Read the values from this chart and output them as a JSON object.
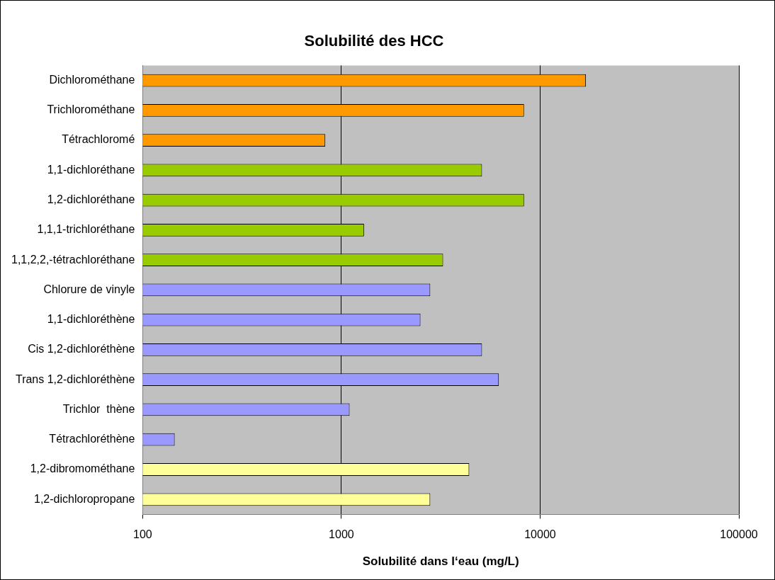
{
  "chart_data": {
    "type": "bar",
    "orientation": "horizontal",
    "title": "Solubilité des HCC",
    "xlabel": "Solubilité dans l‘eau (mg/L)",
    "categories": [
      "Dichlorométhane",
      "Trichlorométhane",
      "Tétrachloromé",
      "1,1-dichloréthane",
      "1,2-dichloréthane",
      "1,1,1-trichloréthane",
      "1,1,2,2,-tétrachloréthane",
      "Chlorure de vinyle",
      "1,1-dichloréthène",
      "Cis 1,2-dichloréthène",
      "Trans 1,2-dichloréthène",
      "Trichlor  thène",
      "Tétrachloréthène",
      "1,2-dibromométhane",
      "1,2-dichloropropane"
    ],
    "values": [
      17000,
      8300,
      830,
      5100,
      8300,
      1300,
      3250,
      2800,
      2500,
      5100,
      6200,
      1100,
      145,
      4400,
      2800
    ],
    "colors": [
      "#ff9900",
      "#ff9900",
      "#ff9900",
      "#99cc00",
      "#99cc00",
      "#99cc00",
      "#99cc00",
      "#9999ff",
      "#9999ff",
      "#9999ff",
      "#9999ff",
      "#9999ff",
      "#9999ff",
      "#ffff99",
      "#ffff99"
    ],
    "log": "x",
    "xlim": [
      100,
      100000
    ],
    "xticks": [
      100,
      1000,
      10000,
      100000
    ],
    "grid": "x",
    "legend": false
  }
}
